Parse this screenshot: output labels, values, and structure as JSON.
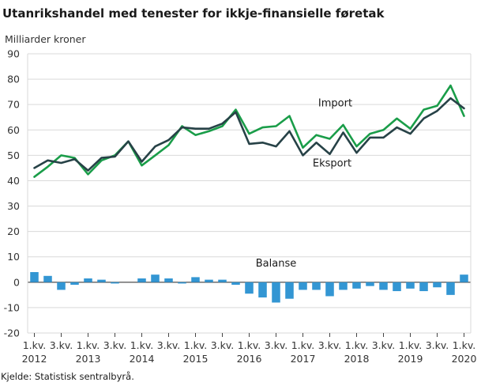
{
  "title": "Utanrikshandel med tenester for ikkje-finansielle føretak",
  "source": "Kjelde: Statistisk sentralbyrå.",
  "chart_data": {
    "type": "line",
    "ylabel": "Milliarder kroner",
    "ylim": [
      -20,
      90
    ],
    "yticks": [
      -20,
      -10,
      0,
      10,
      20,
      30,
      40,
      50,
      60,
      70,
      80,
      90
    ],
    "grid": true,
    "x": [
      "2012K1",
      "2012K2",
      "2012K3",
      "2012K4",
      "2013K1",
      "2013K2",
      "2013K3",
      "2013K4",
      "2014K1",
      "2014K2",
      "2014K3",
      "2014K4",
      "2015K1",
      "2015K2",
      "2015K3",
      "2015K4",
      "2016K1",
      "2016K2",
      "2016K3",
      "2016K4",
      "2017K1",
      "2017K2",
      "2017K3",
      "2017K4",
      "2018K1",
      "2018K2",
      "2018K3",
      "2018K4",
      "2019K1",
      "2019K2",
      "2019K3",
      "2019K4",
      "2020K1"
    ],
    "xtick_labels": [
      {
        "index": 0,
        "quarter": "1.kv.",
        "year": "2012"
      },
      {
        "index": 2,
        "quarter": "3.kv.",
        "year": ""
      },
      {
        "index": 4,
        "quarter": "1.kv.",
        "year": "2013"
      },
      {
        "index": 6,
        "quarter": "3.kv.",
        "year": ""
      },
      {
        "index": 8,
        "quarter": "1.kv.",
        "year": "2014"
      },
      {
        "index": 10,
        "quarter": "3.kv.",
        "year": ""
      },
      {
        "index": 12,
        "quarter": "1.kv.",
        "year": "2015"
      },
      {
        "index": 14,
        "quarter": "3.kv.",
        "year": ""
      },
      {
        "index": 16,
        "quarter": "1.kv.",
        "year": "2016"
      },
      {
        "index": 18,
        "quarter": "3.kv.",
        "year": ""
      },
      {
        "index": 20,
        "quarter": "1.kv.",
        "year": "2017"
      },
      {
        "index": 22,
        "quarter": "3.kv.",
        "year": ""
      },
      {
        "index": 24,
        "quarter": "1.kv.",
        "year": "2018"
      },
      {
        "index": 26,
        "quarter": "3.kv.",
        "year": ""
      },
      {
        "index": 28,
        "quarter": "1.kv.",
        "year": "2019"
      },
      {
        "index": 30,
        "quarter": "3.kv.",
        "year": ""
      },
      {
        "index": 32,
        "quarter": "1.kv.",
        "year": "2020"
      }
    ],
    "series": [
      {
        "name": "Import",
        "kind": "line",
        "color": "#1a9d49",
        "values": [
          41.5,
          45.5,
          50.0,
          49.0,
          42.5,
          48.0,
          50.0,
          55.5,
          46.0,
          50.0,
          54.0,
          61.5,
          58.0,
          59.5,
          61.5,
          68.0,
          58.5,
          61.0,
          61.5,
          65.5,
          53.0,
          58.0,
          56.5,
          62.0,
          53.5,
          58.5,
          60.0,
          64.5,
          60.5,
          68.0,
          69.5,
          77.5,
          65.5
        ]
      },
      {
        "name": "Eksport",
        "kind": "line",
        "color": "#274247",
        "values": [
          45.0,
          48.0,
          47.0,
          48.5,
          44.0,
          49.0,
          49.5,
          55.5,
          47.5,
          53.5,
          56.0,
          61.0,
          60.5,
          60.5,
          62.5,
          67.0,
          54.5,
          55.0,
          53.5,
          59.5,
          50.0,
          55.0,
          50.5,
          59.0,
          51.0,
          57.0,
          57.0,
          61.0,
          58.5,
          64.5,
          67.5,
          72.5,
          68.5
        ]
      },
      {
        "name": "Balanse",
        "kind": "bar",
        "color": "#3396d3",
        "values": [
          4.0,
          2.5,
          -3.0,
          -1.0,
          1.5,
          1.0,
          -0.5,
          0.0,
          1.5,
          3.0,
          1.5,
          -0.5,
          2.0,
          1.0,
          1.0,
          -1.0,
          -4.5,
          -6.0,
          -8.0,
          -6.5,
          -3.0,
          -3.0,
          -5.5,
          -3.0,
          -2.5,
          -1.5,
          -3.0,
          -3.5,
          -2.5,
          -3.5,
          -2.0,
          -5.0,
          3.0
        ]
      }
    ]
  }
}
